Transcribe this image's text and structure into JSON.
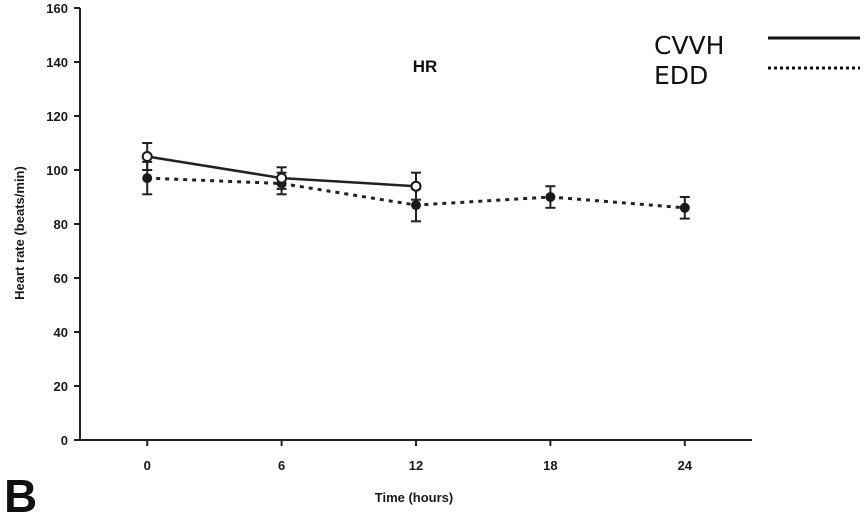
{
  "chart_data": {
    "type": "line",
    "title": "HR",
    "xlabel": "Time (hours)",
    "ylabel": "Heart rate (beats/min)",
    "panel_label": "B",
    "x_ticks": [
      "0",
      "6",
      "12",
      "18",
      "24"
    ],
    "y_ticks": [
      "0",
      "20",
      "40",
      "60",
      "80",
      "100",
      "120",
      "140",
      "160"
    ],
    "xlim": [
      -3,
      27
    ],
    "ylim": [
      0,
      160
    ],
    "grid": false,
    "legend_position": "top-right",
    "series": [
      {
        "name": "CVVH",
        "line_style": "solid",
        "marker": "open-circle",
        "x": [
          0,
          6,
          12
        ],
        "y": [
          105,
          97,
          94
        ],
        "error": [
          5,
          4,
          5
        ]
      },
      {
        "name": "EDD",
        "line_style": "dotted",
        "marker": "filled-circle",
        "x": [
          0,
          6,
          12,
          18,
          24
        ],
        "y": [
          97,
          95,
          87,
          90,
          86
        ],
        "error": [
          6,
          4,
          6,
          4,
          4
        ]
      }
    ]
  }
}
